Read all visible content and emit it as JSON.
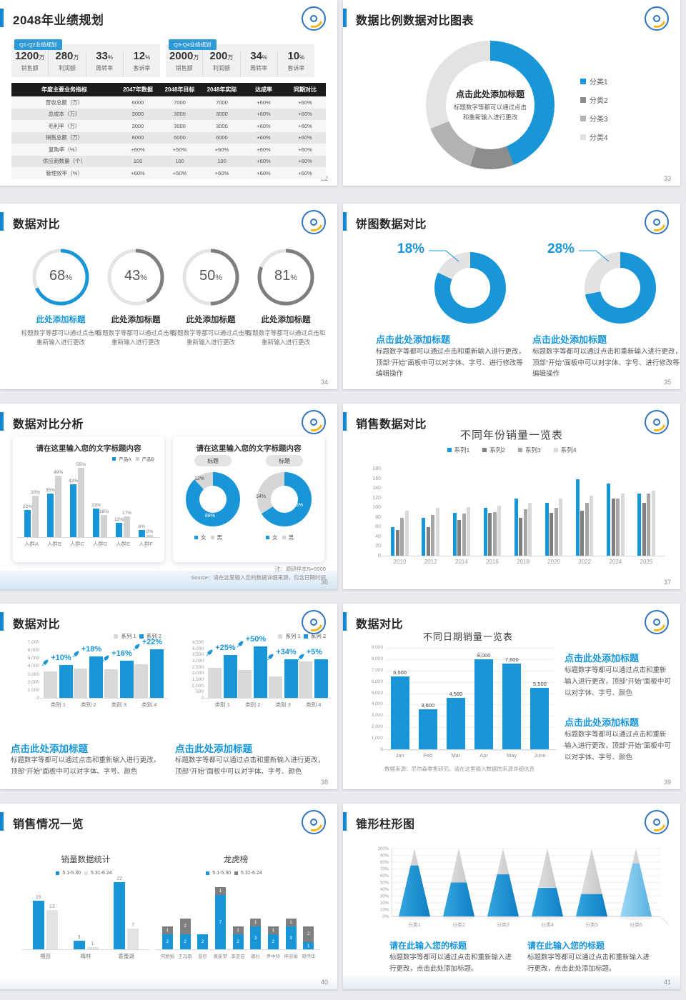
{
  "colors": {
    "accent": "#1896d8",
    "gray_dark": "#7f7f7f",
    "gray_mid": "#a6a6a6",
    "gray_light": "#d9d9d9",
    "track": "#e4e4e4"
  },
  "slides": [
    {
      "id": "s32",
      "title": "2048年业绩规划",
      "page": "32",
      "panels": [
        {
          "tag": "Q1-Q2业绩规划",
          "stats": [
            {
              "value": "1200",
              "unit": "万",
              "label": "销售额"
            },
            {
              "value": "280",
              "unit": "万",
              "label": "利润额"
            },
            {
              "value": "33",
              "unit": "%",
              "label": "周转率"
            },
            {
              "value": "12",
              "unit": "%",
              "label": "客诉率"
            }
          ]
        },
        {
          "tag": "Q3-Q4业绩规划",
          "stats": [
            {
              "value": "2000",
              "unit": "万",
              "label": "销售额"
            },
            {
              "value": "200",
              "unit": "万",
              "label": "利润额"
            },
            {
              "value": "34",
              "unit": "%",
              "label": "周转率"
            },
            {
              "value": "10",
              "unit": "%",
              "label": "客诉率"
            }
          ]
        }
      ],
      "table": {
        "headers": [
          "年度主要业务指标",
          "2047年数据",
          "2048年目标",
          "2048年实际",
          "达成率",
          "同期对比"
        ],
        "rows": [
          [
            "营收总额（万）",
            "6000",
            "7000",
            "7000",
            "+60%",
            "+60%"
          ],
          [
            "总成本（万）",
            "3000",
            "3000",
            "3000",
            "+60%",
            "+60%"
          ],
          [
            "毛利率（万）",
            "3000",
            "3000",
            "3000",
            "+60%",
            "+60%"
          ],
          [
            "销售总额（万）",
            "6000",
            "6000",
            "6000",
            "+60%",
            "+60%"
          ],
          [
            "复购率（%）",
            "+60%",
            "+50%",
            "+60%",
            "+60%",
            "+60%"
          ],
          [
            "供应商数量（个）",
            "100",
            "100",
            "100",
            "+60%",
            "+60%"
          ],
          [
            "管理效率（%）",
            "+60%",
            "+50%",
            "+60%",
            "+60%",
            "+60%"
          ]
        ]
      }
    },
    {
      "id": "s33",
      "title": "数据比例数据对比图表",
      "page": "33",
      "chart_data": {
        "type": "pie",
        "center_title": "点击此处添加标题",
        "center_desc": "标题数字等都可以通过点击和重新输入进行更改",
        "segments": [
          {
            "label": "分类1",
            "value": 44,
            "color": "#1896d8"
          },
          {
            "label": "分类2",
            "value": 11,
            "color": "#8c8c8c"
          },
          {
            "label": "分类3",
            "value": 14,
            "color": "#b3b3b3"
          },
          {
            "label": "分类4",
            "value": 31,
            "color": "#e3e3e3"
          }
        ]
      }
    },
    {
      "id": "s34",
      "title": "数据对比",
      "page": "34",
      "chart_data": {
        "type": "pie",
        "style": "ring-gauges",
        "gauges": [
          {
            "pct": 68,
            "color": "#1896d8",
            "title": "此处添加标题",
            "title_color": "#1896d8",
            "desc": "标题数字等都可以通过点击和重新输入进行更改"
          },
          {
            "pct": 43,
            "color": "#7f7f7f",
            "title": "此处添加标题",
            "title_color": "#333333",
            "desc": "标题数字等都可以通过点击和重新输入进行更改"
          },
          {
            "pct": 50,
            "color": "#7f7f7f",
            "title": "此处添加标题",
            "title_color": "#333333",
            "desc": "标题数字等都可以通过点击和重新输入进行更改"
          },
          {
            "pct": 81,
            "color": "#7f7f7f",
            "title": "此处添加标题",
            "title_color": "#333333",
            "desc": "标题数字等都可以通过点击和重新输入进行更改"
          }
        ]
      }
    },
    {
      "id": "s35",
      "title": "饼图数据对比",
      "page": "35",
      "chart_data": {
        "type": "pie",
        "donuts": [
          {
            "pct_label": "18%",
            "blue": 82,
            "gray": 18,
            "title": "点击此处添加标题",
            "desc": "标题数字等都可以通过点击和重新输入进行更改，顶部“开始”面板中可以对字体、字号、进行修改等编辑操作"
          },
          {
            "pct_label": "28%",
            "blue": 72,
            "gray": 28,
            "title": "点击此处添加标题",
            "desc": "标题数字等都可以通过点击和重新输入进行更改，顶部“开始”面板中可以对字体、字号、进行修改等编辑操作"
          }
        ]
      }
    },
    {
      "id": "s36",
      "title": "数据对比分析",
      "page": "36",
      "card_left": {
        "title": "请在这里输入您的文字标题内容",
        "chart_data": {
          "type": "bar",
          "categories": [
            "人群A",
            "人群B",
            "人群C",
            "人群D",
            "人群E",
            "人群F"
          ],
          "series": [
            {
              "name": "产品A",
              "color": "#1896d8",
              "values": [
                22,
                35,
                42,
                23,
                12,
                6
              ]
            },
            {
              "name": "产品B",
              "color": "#d2d2d2",
              "values": [
                33,
                49,
                55,
                18,
                17,
                2
              ]
            }
          ],
          "value_suffix": "%",
          "ylim": [
            0,
            60
          ]
        }
      },
      "card_right": {
        "title": "请在这里输入您的文字标题内容",
        "pills": [
          "标题",
          "标题"
        ],
        "chart_data": {
          "type": "pie",
          "donuts": [
            {
              "labels": [
                "12%",
                "88%"
              ],
              "female_pct": 88,
              "male_pct": 12
            },
            {
              "labels": [
                "34%",
                "66%"
              ],
              "female_pct": 66,
              "male_pct": 34
            }
          ],
          "legend": [
            {
              "label": "女",
              "color": "#1896d8"
            },
            {
              "label": "男",
              "color": "#d2d2d2"
            }
          ]
        }
      },
      "note1": "注：调研样本N=5000",
      "note2": "Source：请在这里输入您的数据详细来源，包含日期时间"
    },
    {
      "id": "s37",
      "title": "销售数据对比",
      "page": "37",
      "chart_data": {
        "type": "bar",
        "title": "不同年份销量一览表",
        "categories": [
          "2010",
          "2012",
          "2014",
          "2016",
          "2018",
          "2020",
          "2022",
          "2024",
          "2026"
        ],
        "series": [
          {
            "name": "系列1",
            "color": "#1896d8",
            "values": [
              60,
              80,
              90,
              100,
              120,
              110,
              160,
              150,
              130
            ]
          },
          {
            "name": "系列2",
            "color": "#7f7f7f",
            "values": [
              55,
              60,
              75,
              90,
              80,
              90,
              95,
              120,
              110
            ]
          },
          {
            "name": "系列3",
            "color": "#a6a6a6",
            "values": [
              80,
              85,
              88,
              92,
              98,
              100,
              110,
              120,
              130
            ]
          },
          {
            "name": "系列4",
            "color": "#d9d9d9",
            "values": [
              95,
              100,
              102,
              105,
              110,
              120,
              125,
              130,
              135
            ]
          }
        ],
        "ylim": [
          0,
          180
        ],
        "ystep": 20,
        "yticks": [
          "180",
          "160",
          "140",
          "120",
          "100",
          "80",
          "60",
          "40",
          "20",
          "0"
        ]
      }
    },
    {
      "id": "s38",
      "title": "数据对比",
      "page": "38",
      "charts": [
        {
          "type": "bar",
          "legend": [
            {
              "label": "系列 1",
              "color": "#d9d9d9"
            },
            {
              "label": "系列 2",
              "color": "#1896d8"
            }
          ],
          "yticks": [
            "7,000",
            "6,000",
            "5,000",
            "4,000",
            "3,000",
            "2,000",
            "1,000",
            "0"
          ],
          "ymax": 7000,
          "categories": [
            "类别 1",
            "类别 2",
            "类别 3",
            "类别 4"
          ],
          "gray": [
            3400,
            3800,
            3700,
            4300
          ],
          "blue": [
            4200,
            5300,
            4800,
            6200
          ],
          "growth": [
            "+10%",
            "+18%",
            "+16%",
            "+22%"
          ],
          "block_title": "点击此处添加标题",
          "block_desc": "标题数字等都可以通过点击和重新输入进行更改，顶部“开始”面板中可以对字体、字号、颜色"
        },
        {
          "type": "bar",
          "legend": [
            {
              "label": "系列 1",
              "color": "#d9d9d9"
            },
            {
              "label": "系列 2",
              "color": "#1896d8"
            }
          ],
          "yticks": [
            "4,500",
            "4,000",
            "3,500",
            "3,000",
            "2,500",
            "2,000",
            "1,500",
            "1,000",
            "500",
            "0"
          ],
          "ymax": 4500,
          "categories": [
            "类别 1",
            "类别 2",
            "类别 3",
            "类别 4"
          ],
          "gray": [
            2500,
            2300,
            1800,
            3000
          ],
          "blue": [
            3500,
            4200,
            3200,
            3200
          ],
          "growth": [
            "+25%",
            "+50%",
            "+34%",
            "+5%"
          ],
          "block_title": "点击此处添加标题",
          "block_desc": "标题数字等都可以通过点击和重新输入进行更改，顶部“开始”面板中可以对字体、字号、颜色"
        }
      ]
    },
    {
      "id": "s39",
      "title": "数据对比",
      "page": "39",
      "chart_data": {
        "type": "bar",
        "title": "不同日期销量一览表",
        "categories": [
          "Jan",
          "Feb",
          "Mar",
          "Apr",
          "May",
          "June"
        ],
        "values": [
          6500,
          3600,
          4580,
          8000,
          7600,
          5500
        ],
        "labels": [
          "6,500",
          "3,600",
          "4,580",
          "8,000",
          "7,600",
          "5,500"
        ],
        "ylim": [
          0,
          9000
        ],
        "ystep": 1000,
        "yticks": [
          "9,000",
          "8,000",
          "7,000",
          "6,000",
          "5,000",
          "4,000",
          "3,000",
          "2,000",
          "1,000",
          "0"
        ]
      },
      "caption": "数据来源：尼尔森零售研究，请在这里输入数据的来源详细信息",
      "blocks": [
        {
          "title": "点击此处添加标题",
          "desc": "标题数字等都可以通过点击和重新输入进行更改，顶部“开始”面板中可以对字体、字号、颜色"
        },
        {
          "title": "点击此处添加标题",
          "desc": "标题数字等都可以通过点击和重新输入进行更改，顶部“开始”面板中可以对字体、字号、颜色"
        }
      ]
    },
    {
      "id": "s40",
      "title": "销售情况一览",
      "page": "40",
      "left": {
        "title": "销量数据统计",
        "legend": [
          {
            "label": "5.1-5.30",
            "color": "#1896d8"
          },
          {
            "label": "5.31-6.24",
            "color": "#e3e3e3"
          }
        ],
        "chart_data": {
          "type": "bar",
          "categories": [
            "福田",
            "梅林",
            "香蜜湖"
          ],
          "series": [
            {
              "name": "5.1-5.30",
              "values": [
                16,
                3,
                22
              ]
            },
            {
              "name": "5.31-6.24",
              "values": [
                13,
                1,
                7
              ]
            }
          ]
        }
      },
      "right": {
        "title": "龙虎榜",
        "legend": [
          {
            "label": "5.1-5.30",
            "color": "#1896d8"
          },
          {
            "label": "5.31-6.24",
            "color": "#7f7f7f"
          }
        ],
        "chart_data": {
          "type": "bar",
          "style": "stacked",
          "categories": [
            "何丽娟",
            "王冯雨",
            "普珍",
            "黄新梦",
            "李亚茹",
            "娜杉",
            "尹中铃",
            "坤迎娟",
            "周伟华"
          ],
          "series": [
            {
              "name": "5.1-5.30",
              "values": [
                2,
                2,
                2,
                7,
                2,
                3,
                2,
                3,
                1
              ]
            },
            {
              "name": "5.31-6.24",
              "values": [
                1,
                2,
                0,
                1,
                1,
                1,
                1,
                1,
                2
              ]
            }
          ]
        }
      }
    },
    {
      "id": "s41",
      "title": "锥形柱形图",
      "page": "41",
      "chart_data": {
        "type": "bar",
        "style": "cone",
        "categories": [
          "分类1",
          "分类2",
          "分类3",
          "分类4",
          "分类5",
          "分类6"
        ],
        "values": [
          75,
          50,
          62,
          42,
          33,
          78
        ],
        "ylim": [
          0,
          100
        ],
        "ystep": 10
      },
      "blocks": [
        {
          "title": "请在此输入您的标题",
          "desc": "标题数字等都可以通过点击和重新输入进行更改，点击此处添加标题。"
        },
        {
          "title": "请在此输入您的标题",
          "desc": "标题数字等都可以通过点击和重新输入进行更改，点击此处添加标题。"
        }
      ]
    }
  ]
}
